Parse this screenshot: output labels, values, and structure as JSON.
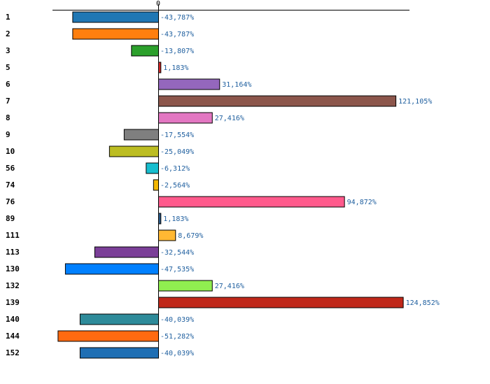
{
  "chart_data": {
    "type": "bar",
    "orientation": "horizontal",
    "categories": [
      "1",
      "2",
      "3",
      "5",
      "6",
      "7",
      "8",
      "9",
      "10",
      "56",
      "74",
      "76",
      "89",
      "111",
      "113",
      "130",
      "132",
      "139",
      "140",
      "144",
      "152"
    ],
    "values": [
      -43.787,
      -43.787,
      -13.807,
      1.183,
      31.164,
      121.105,
      27.416,
      -17.554,
      -25.049,
      -6.312,
      -2.564,
      94.872,
      1.183,
      8.679,
      -32.544,
      -47.535,
      27.416,
      124.852,
      -40.039,
      -51.282,
      -40.039
    ],
    "value_labels": [
      "-43,787%",
      "-43,787%",
      "-13,807%",
      "1,183%",
      "31,164%",
      "121,105%",
      "27,416%",
      "-17,554%",
      "-25,049%",
      "-6,312%",
      "-2,564%",
      "94,872%",
      "1,183%",
      "8,679%",
      "-32,544%",
      "-47,535%",
      "27,416%",
      "124,852%",
      "-40,039%",
      "-51,282%",
      "-40,039%"
    ],
    "colors": [
      "#1f77b4",
      "#ff7f0e",
      "#2ca02c",
      "#d62728",
      "#9467bd",
      "#8c564b",
      "#e377c2",
      "#7f7f7f",
      "#bcbd22",
      "#17becf",
      "#f5b800",
      "#ff5a8c",
      "#2b5c8a",
      "#ffb833",
      "#7b3f98",
      "#0080ff",
      "#90ee50",
      "#c0281a",
      "#2e8b9a",
      "#ff6a10",
      "#1f6fb4"
    ],
    "zero_tick_label": "0",
    "xlim": [
      -55,
      125
    ],
    "title": "",
    "xlabel": "",
    "ylabel": "",
    "grid": false,
    "legend": "none"
  }
}
